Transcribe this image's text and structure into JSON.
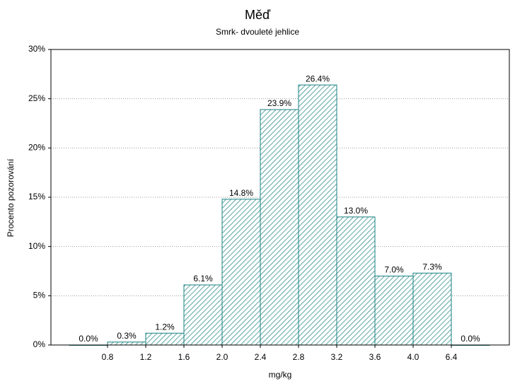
{
  "chart_data": {
    "type": "bar",
    "title": "Měď",
    "subtitle": "Smrk- dvouleté jehlice",
    "x_label": "mg/kg",
    "y_label": "Procento pozorování",
    "x_edge_labels": [
      "0.8",
      "1.2",
      "1.6",
      "2.0",
      "2.4",
      "2.8",
      "3.2",
      "3.6",
      "4.0",
      "6.4"
    ],
    "values": [
      0.0,
      0.3,
      1.2,
      6.1,
      14.8,
      23.9,
      26.4,
      13.0,
      7.0,
      7.3,
      0.0
    ],
    "value_labels": [
      "0.0%",
      "0.3%",
      "1.2%",
      "6.1%",
      "14.8%",
      "23.9%",
      "26.4%",
      "13.0%",
      "7.0%",
      "7.3%",
      "0.0%"
    ],
    "color": "#1a8080",
    "ylim": [
      0,
      30
    ],
    "yticks": [
      {
        "value": 0,
        "label": "0%"
      },
      {
        "value": 5,
        "label": "5%"
      },
      {
        "value": 10,
        "label": "10%"
      },
      {
        "value": 15,
        "label": "15%"
      },
      {
        "value": 20,
        "label": "20%"
      },
      {
        "value": 25,
        "label": "25%"
      },
      {
        "value": 30,
        "label": "30%"
      }
    ],
    "grid": true
  }
}
